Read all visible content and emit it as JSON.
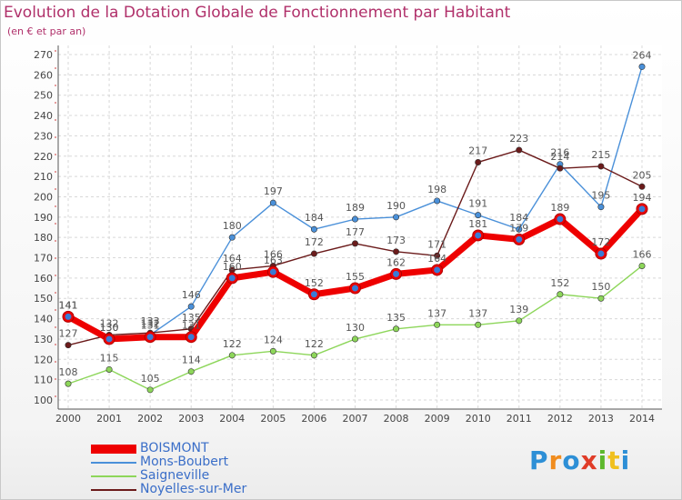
{
  "header": {
    "title": "Evolution de la Dotation Globale de Fonctionnement par Habitant",
    "subtitle": "(en € et par an)"
  },
  "logo": {
    "text": "Proxiti",
    "colors": [
      "#2d8fd6",
      "#f08c1e",
      "#2d8fd6",
      "#e03c28",
      "#5cb82d",
      "#f0c01e",
      "#2d8fd6"
    ]
  },
  "chart_data": {
    "type": "line",
    "x": [
      "2000",
      "2001",
      "2002",
      "2003",
      "2004",
      "2005",
      "2006",
      "2007",
      "2008",
      "2009",
      "2010",
      "2011",
      "2012",
      "2013",
      "2014"
    ],
    "ylim": [
      100,
      270
    ],
    "yticks": [
      100,
      110,
      120,
      130,
      140,
      150,
      160,
      170,
      180,
      190,
      200,
      210,
      220,
      230,
      240,
      250,
      260,
      270
    ],
    "grid": true,
    "legend_position": "bottom-left",
    "series": [
      {
        "name": "BOISMONT",
        "color": "#ee0000",
        "emphasis": true,
        "values": [
          141,
          130,
          131,
          131,
          160,
          163,
          152,
          155,
          162,
          164,
          181,
          179,
          189,
          172,
          194
        ],
        "labels": [
          "141",
          "130",
          "131",
          "131",
          "160",
          "163",
          "152",
          "155",
          "162",
          "164",
          "181",
          "179",
          "189",
          "172",
          "194"
        ]
      },
      {
        "name": "Mons-Boubert",
        "color": "#4a90d9",
        "values": [
          141,
          130,
          132,
          146,
          180,
          197,
          184,
          189,
          190,
          198,
          191,
          184,
          216,
          195,
          264
        ],
        "labels": [
          "141",
          "130",
          "132",
          "146",
          "180",
          "197",
          "184",
          "189",
          "190",
          "198",
          "191",
          "184",
          "216",
          "195",
          "264"
        ]
      },
      {
        "name": "Saigneville",
        "color": "#8dd65a",
        "values": [
          108,
          115,
          105,
          114,
          122,
          124,
          122,
          130,
          135,
          137,
          137,
          139,
          152,
          150,
          166
        ],
        "labels": [
          "108",
          "115",
          "105",
          "114",
          "122",
          "124",
          "122",
          "130",
          "135",
          "137",
          "137",
          "139",
          "152",
          "150",
          "166"
        ]
      },
      {
        "name": "Noyelles-sur-Mer",
        "color": "#6b1b1b",
        "values": [
          127,
          132,
          133,
          135,
          164,
          166,
          172,
          177,
          173,
          171,
          217,
          223,
          214,
          215,
          205
        ],
        "labels": [
          "127",
          "132",
          "133",
          "135",
          "164",
          "166",
          "172",
          "177",
          "173",
          "171",
          "217",
          "223",
          "214",
          "215",
          "205"
        ]
      }
    ]
  }
}
